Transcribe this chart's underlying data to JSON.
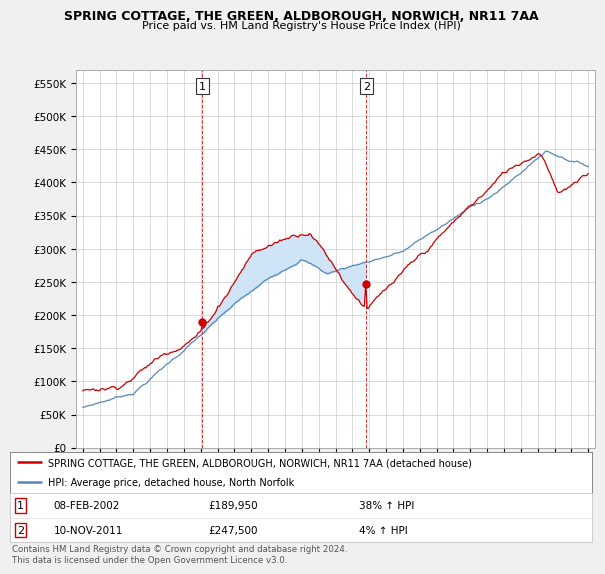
{
  "title": "SPRING COTTAGE, THE GREEN, ALDBOROUGH, NORWICH, NR11 7AA",
  "subtitle": "Price paid vs. HM Land Registry's House Price Index (HPI)",
  "price_paid_label": "SPRING COTTAGE, THE GREEN, ALDBOROUGH, NORWICH, NR11 7AA (detached house)",
  "hpi_label": "HPI: Average price, detached house, North Norfolk",
  "price_color": "#cc0000",
  "hpi_color": "#5588bb",
  "fill_color": "#d0e4f7",
  "marker1_date": "08-FEB-2002",
  "marker1_price": 189950,
  "marker1_hpi_pct": "38%",
  "marker2_date": "10-NOV-2011",
  "marker2_price": 247500,
  "marker2_hpi_pct": "4%",
  "footer": "Contains HM Land Registry data © Crown copyright and database right 2024.\nThis data is licensed under the Open Government Licence v3.0.",
  "ylim": [
    0,
    570000
  ],
  "yticks": [
    0,
    50000,
    100000,
    150000,
    200000,
    250000,
    300000,
    350000,
    400000,
    450000,
    500000,
    550000
  ],
  "fig_bg": "#f0f0f0",
  "plot_bg": "#ffffff",
  "year_start": 1995,
  "year_end": 2025,
  "t1": 2002.0917,
  "t2": 2011.8333
}
